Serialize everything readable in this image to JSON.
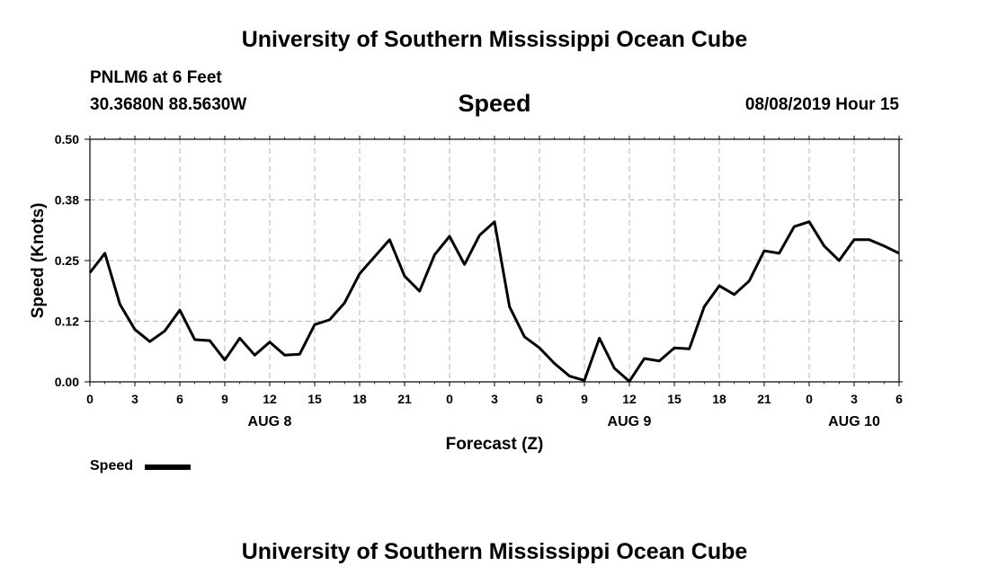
{
  "header": {
    "title": "University of Southern Mississippi Ocean Cube",
    "station": "PNLM6 at 6 Feet",
    "coordinates": "30.3680N 88.5630W",
    "datetime": "08/08/2019 Hour 15"
  },
  "footer": {
    "title": "University of Southern Mississippi Ocean Cube"
  },
  "chart_data": {
    "type": "line",
    "title": "Speed",
    "xlabel": "Forecast (Z)",
    "ylabel": "Speed (Knots)",
    "ylim": [
      0,
      0.5
    ],
    "xlim": [
      0,
      54
    ],
    "yticks": [
      0,
      0.125,
      0.25,
      0.375,
      0.5
    ],
    "ytick_labels": [
      "0.00",
      "0.12",
      "0.25",
      "0.38",
      "0.50"
    ],
    "xticks": [
      0,
      3,
      6,
      9,
      12,
      15,
      18,
      21,
      24,
      27,
      30,
      33,
      36,
      39,
      42,
      45,
      48,
      51,
      54
    ],
    "xtick_labels": [
      "0",
      "3",
      "6",
      "9",
      "12",
      "15",
      "18",
      "21",
      "0",
      "3",
      "6",
      "9",
      "12",
      "15",
      "18",
      "21",
      "0",
      "3",
      "6"
    ],
    "day_labels": [
      {
        "label": "AUG 8",
        "x": 12
      },
      {
        "label": "AUG 9",
        "x": 36
      },
      {
        "label": "AUG 10",
        "x": 51
      }
    ],
    "grid": true,
    "legend": {
      "label": "Speed",
      "position": "bottom-left"
    },
    "series": [
      {
        "name": "Speed",
        "color": "#000000",
        "x": [
          0,
          1,
          2,
          3,
          4,
          5,
          6,
          7,
          8,
          9,
          10,
          11,
          12,
          13,
          14,
          15,
          16,
          17,
          18,
          19,
          20,
          21,
          22,
          23,
          24,
          25,
          26,
          27,
          28,
          29,
          30,
          31,
          32,
          33,
          34,
          35,
          36,
          37,
          38,
          39,
          40,
          41,
          42,
          43,
          44,
          45,
          46,
          47,
          48,
          49,
          50,
          51,
          52,
          53,
          54
        ],
        "values": [
          0.225,
          0.265,
          0.16,
          0.108,
          0.083,
          0.105,
          0.148,
          0.087,
          0.085,
          0.045,
          0.09,
          0.055,
          0.082,
          0.055,
          0.057,
          0.118,
          0.128,
          0.163,
          0.223,
          0.258,
          0.293,
          0.218,
          0.187,
          0.262,
          0.3,
          0.242,
          0.302,
          0.33,
          0.155,
          0.093,
          0.07,
          0.038,
          0.012,
          0.003,
          0.09,
          0.028,
          0.001,
          0.048,
          0.043,
          0.07,
          0.068,
          0.155,
          0.198,
          0.18,
          0.208,
          0.27,
          0.265,
          0.32,
          0.33,
          0.28,
          0.25,
          0.293,
          0.293,
          0.28,
          0.265
        ]
      }
    ]
  }
}
